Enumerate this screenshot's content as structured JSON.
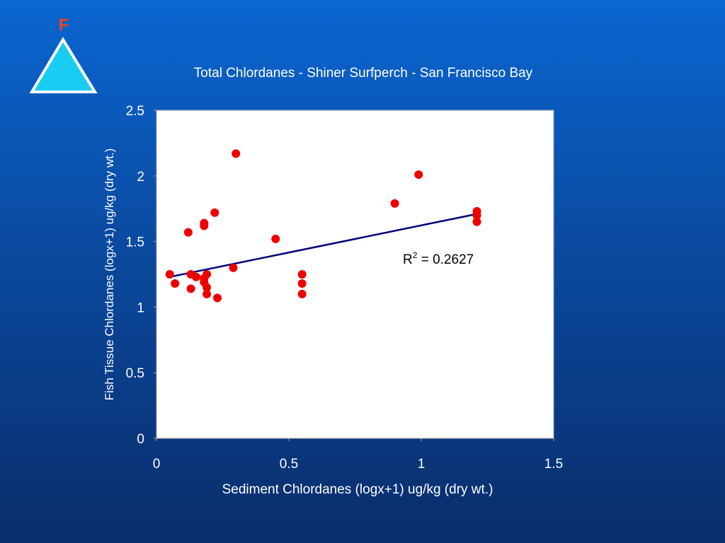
{
  "logo": {
    "letter": "F",
    "fill_color": "#19cdf2",
    "stroke_color": "#ffffff",
    "letter_color": "#ff3b1f"
  },
  "chart_data": {
    "type": "scatter",
    "title": "Total Chlordanes - Shiner Surfperch - San Francisco Bay",
    "xlabel": "Sediment Chlordanes (logx+1) ug/kg (dry wt.)",
    "ylabel": "Fish Tissue Chlordanes (logx+1) ug/kg (dry wt.)",
    "xlim": [
      0,
      1.5
    ],
    "ylim": [
      0,
      2.5
    ],
    "xticks": [
      "0",
      "0.5",
      "1",
      "1.5"
    ],
    "yticks": [
      "0",
      "0.5",
      "1",
      "1.5",
      "2",
      "2.5"
    ],
    "grid": false,
    "points": [
      [
        0.05,
        1.25
      ],
      [
        0.07,
        1.18
      ],
      [
        0.12,
        1.57
      ],
      [
        0.13,
        1.25
      ],
      [
        0.13,
        1.14
      ],
      [
        0.15,
        1.23
      ],
      [
        0.18,
        1.64
      ],
      [
        0.18,
        1.62
      ],
      [
        0.18,
        1.22
      ],
      [
        0.18,
        1.19
      ],
      [
        0.19,
        1.25
      ],
      [
        0.19,
        1.15
      ],
      [
        0.19,
        1.1
      ],
      [
        0.22,
        1.72
      ],
      [
        0.23,
        1.07
      ],
      [
        0.29,
        1.3
      ],
      [
        0.3,
        2.17
      ],
      [
        0.45,
        1.52
      ],
      [
        0.55,
        1.25
      ],
      [
        0.55,
        1.18
      ],
      [
        0.55,
        1.1
      ],
      [
        0.9,
        1.79
      ],
      [
        0.99,
        2.01
      ],
      [
        1.21,
        1.73
      ],
      [
        1.21,
        1.7
      ],
      [
        1.21,
        1.65
      ]
    ],
    "trendline": {
      "x": [
        0.05,
        1.21
      ],
      "y": [
        1.23,
        1.71
      ]
    },
    "annotation": {
      "base": "R",
      "superscript": "2",
      "text": " = 0.2627"
    },
    "colors": {
      "points": "#ee0000",
      "trendline": "#00007a",
      "plot_background": "#ffffff",
      "text": "#ffffff"
    }
  }
}
